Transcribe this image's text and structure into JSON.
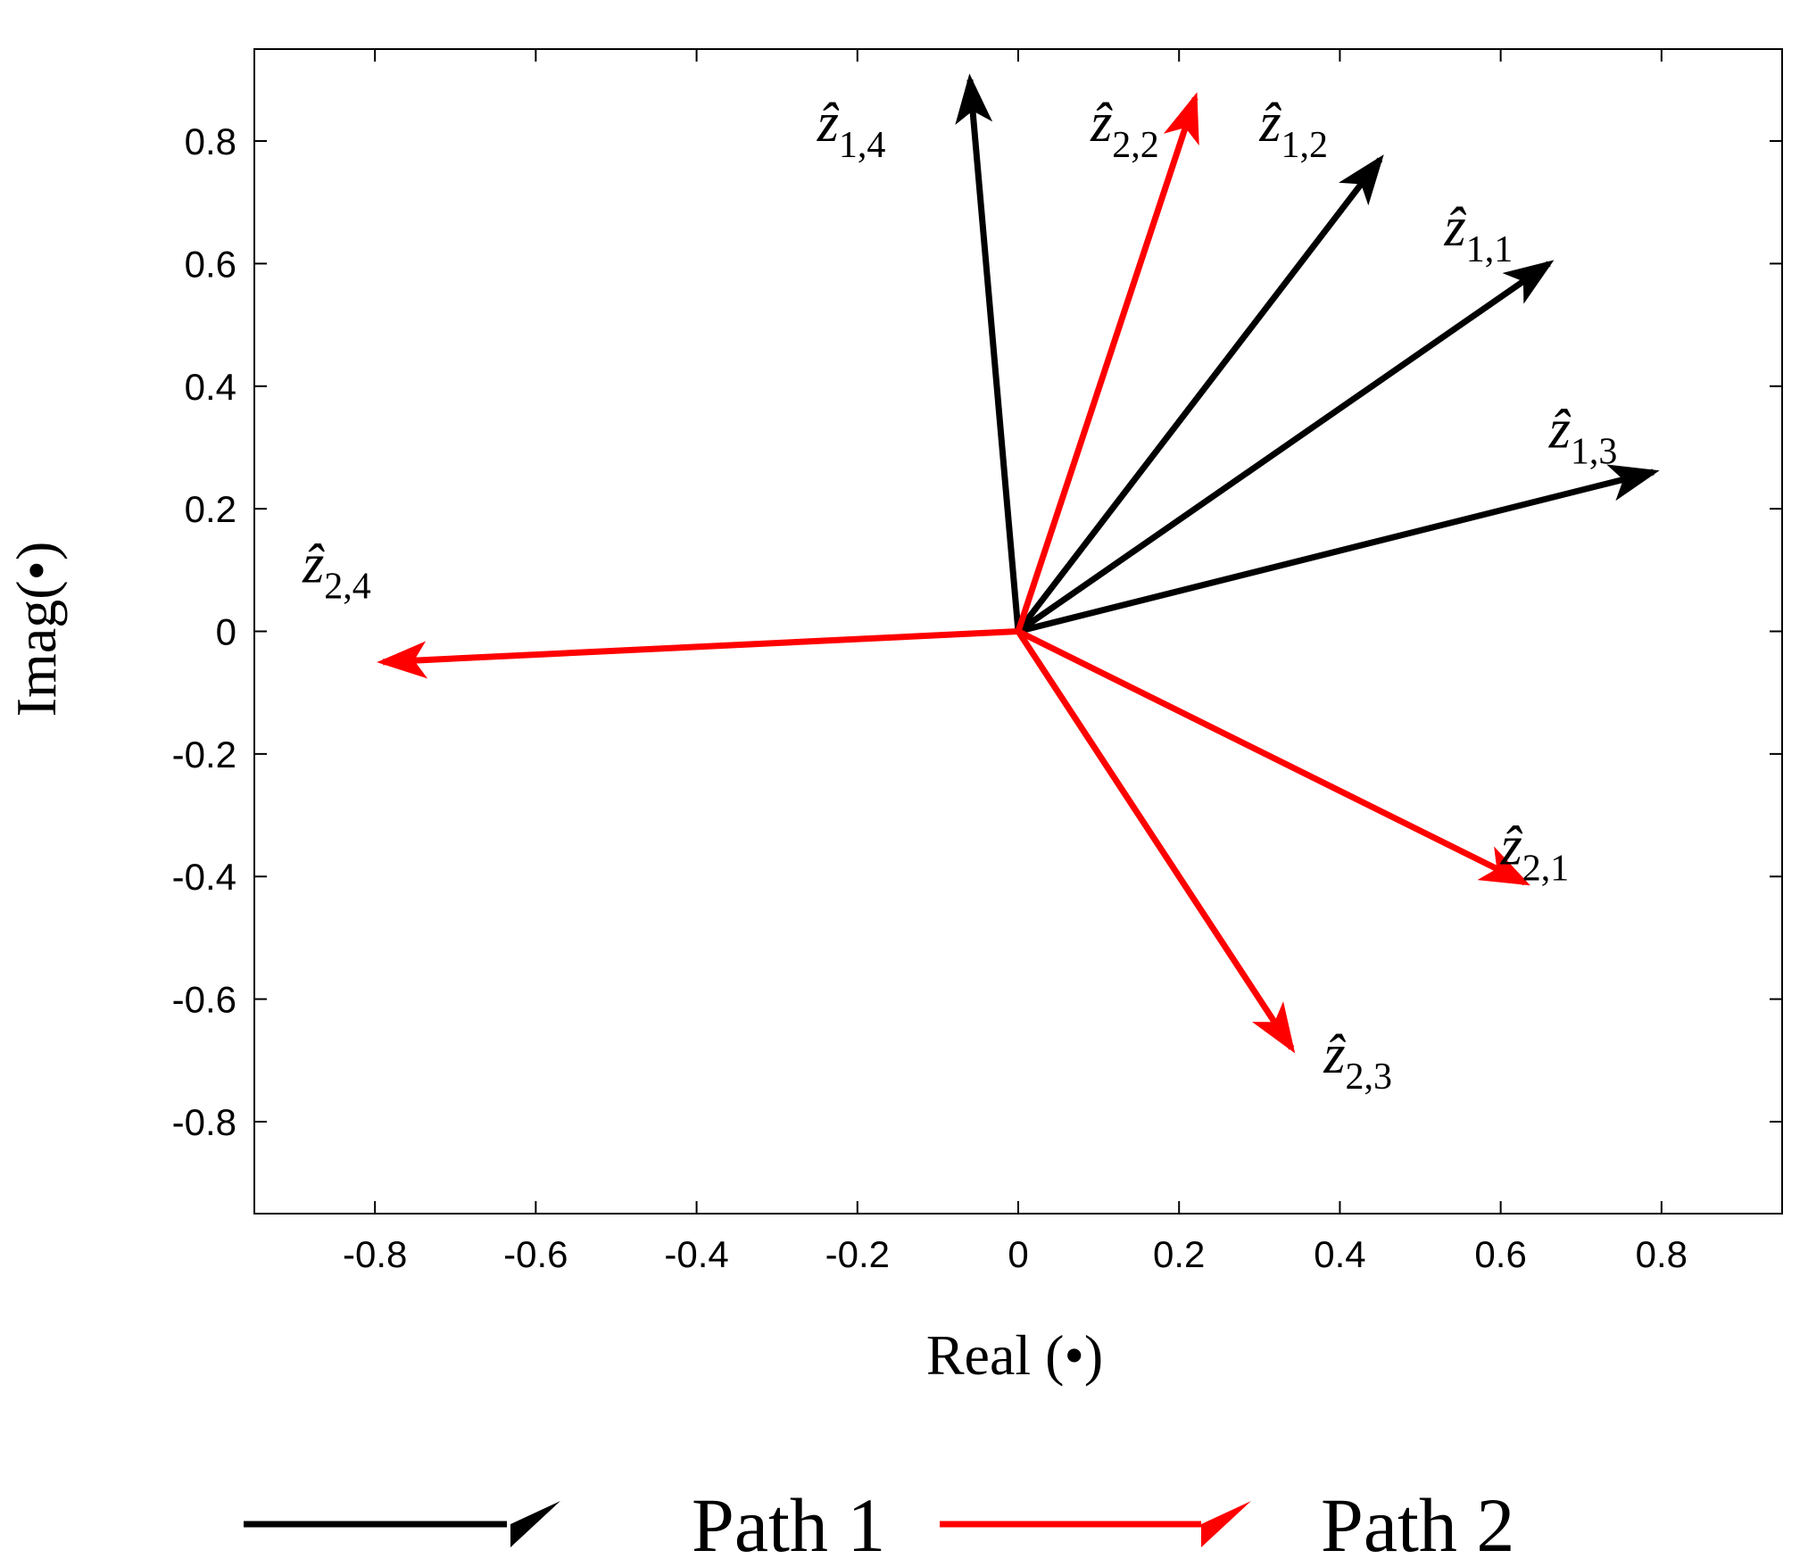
{
  "chart_data": {
    "type": "vector",
    "title": "",
    "xlabel": "Real (•)",
    "ylabel": "Imag(•)",
    "xlim": [
      -0.95,
      0.95
    ],
    "ylim": [
      -0.95,
      0.95
    ],
    "x_ticks": [
      -0.8,
      -0.6,
      -0.4,
      -0.2,
      0,
      0.2,
      0.4,
      0.6,
      0.8
    ],
    "x_tick_labels": [
      "-0.8",
      "-0.6",
      "-0.4",
      "-0.2",
      "0",
      "0.2",
      "0.4",
      "0.6",
      "0.8"
    ],
    "y_ticks": [
      0.8,
      0.6,
      0.4,
      0.2,
      0,
      -0.2,
      -0.4,
      -0.6,
      -0.8
    ],
    "y_tick_labels": [
      "0.8",
      "0.6",
      "0.4",
      "0.2",
      "0",
      "-0.2",
      "-0.4",
      "-0.6",
      "-0.8"
    ],
    "grid": false,
    "legend_position": "bottom",
    "series": [
      {
        "name": "Path 1",
        "color": "#000000",
        "vectors": [
          {
            "label": "ẑ",
            "sub": "1,1",
            "x": 0.66,
            "y": 0.6,
            "label_x": 0.53,
            "label_y": 0.63
          },
          {
            "label": "ẑ",
            "sub": "1,2",
            "x": 0.45,
            "y": 0.77,
            "label_x": 0.3,
            "label_y": 0.8
          },
          {
            "label": "ẑ",
            "sub": "1,3",
            "x": 0.79,
            "y": 0.26,
            "label_x": 0.66,
            "label_y": 0.3
          },
          {
            "label": "ẑ",
            "sub": "1,4",
            "x": -0.06,
            "y": 0.9,
            "label_x": -0.25,
            "label_y": 0.8
          }
        ]
      },
      {
        "name": "Path 2",
        "color": "#ff0000",
        "vectors": [
          {
            "label": "ẑ",
            "sub": "2,1",
            "x": 0.63,
            "y": -0.41,
            "label_x": 0.6,
            "label_y": -0.38
          },
          {
            "label": "ẑ",
            "sub": "2,2",
            "x": 0.22,
            "y": 0.87,
            "label_x": 0.09,
            "label_y": 0.8
          },
          {
            "label": "ẑ",
            "sub": "2,3",
            "x": 0.34,
            "y": -0.68,
            "label_x": 0.38,
            "label_y": -0.72
          },
          {
            "label": "ẑ",
            "sub": "2,4",
            "x": -0.79,
            "y": -0.05,
            "label_x": -0.89,
            "label_y": 0.08
          }
        ]
      }
    ]
  }
}
